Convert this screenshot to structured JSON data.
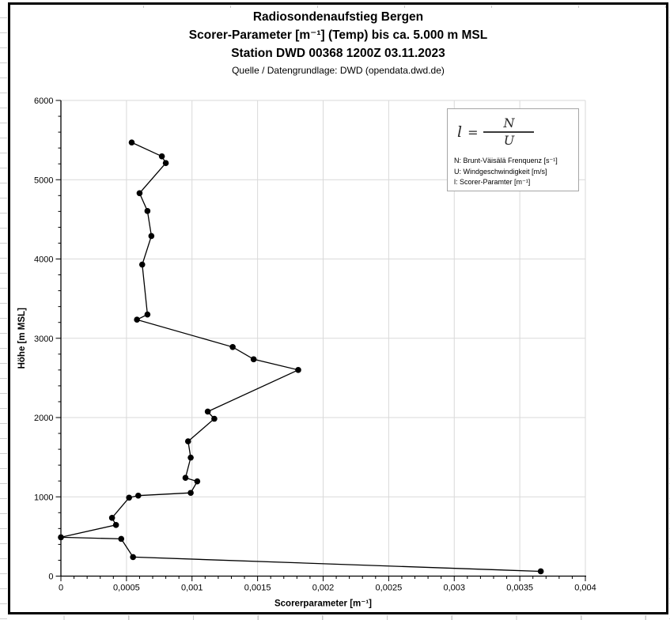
{
  "title": {
    "line1": "Radiosondenaufstieg Bergen",
    "line2": "Scorer-Parameter [m⁻¹] (Temp) bis ca. 5.000 m MSL",
    "line3": "Station DWD 00368 1200Z 03.11.2023",
    "line4": "Quelle / Datengrundlage: DWD (opendata.dwd.de)"
  },
  "legend": {
    "formula_lhs": "l",
    "formula_eq": "=",
    "formula_numerator": "N",
    "formula_denominator": "U",
    "note_n": "N: Brunt-Väisälä Frenquenz [s⁻¹]",
    "note_u": "U: Windgeschwindigkeit [m/s]",
    "note_l": "l: Scorer-Paramter [m⁻¹]"
  },
  "chart_data": {
    "type": "line",
    "title": "Radiosondenaufstieg Bergen — Scorer-Parameter (Temp) bis ca. 5.000 m MSL",
    "xlabel": "Scorerparameter [m⁻¹]",
    "ylabel": "Höhe [m MSL]",
    "xlim": [
      0,
      0.004
    ],
    "ylim": [
      0,
      6000
    ],
    "grid": true,
    "x_ticks": {
      "values": [
        0,
        0.0005,
        0.001,
        0.0015,
        0.002,
        0.0025,
        0.003,
        0.0035,
        0.004
      ],
      "labels": [
        "0",
        "0,0005",
        "0,001",
        "0,0015",
        "0,002",
        "0,0025",
        "0,003",
        "0,0035",
        "0,004"
      ]
    },
    "y_ticks": {
      "values": [
        0,
        1000,
        2000,
        3000,
        4000,
        5000,
        6000
      ],
      "labels": [
        "0",
        "1000",
        "2000",
        "3000",
        "4000",
        "5000",
        "6000"
      ]
    },
    "x_minor_step": 0.0001,
    "y_minor_step": 200,
    "point_format": [
      "scorer_parameter_m-1",
      "hoehe_m_msl"
    ],
    "series": [
      {
        "name": "Scorer-Parameter (Temp)",
        "points": [
          [
            0.00366,
            60
          ],
          [
            0.00055,
            240
          ],
          [
            0.00046,
            470
          ],
          [
            0.0,
            490
          ],
          [
            0.00042,
            645
          ],
          [
            0.00039,
            735
          ],
          [
            0.00052,
            990
          ],
          [
            0.00059,
            1015
          ],
          [
            0.00099,
            1050
          ],
          [
            0.00104,
            1195
          ],
          [
            0.00095,
            1240
          ],
          [
            0.00099,
            1495
          ],
          [
            0.00097,
            1700
          ],
          [
            0.00117,
            1985
          ],
          [
            0.00112,
            2075
          ],
          [
            0.00181,
            2600
          ],
          [
            0.00147,
            2735
          ],
          [
            0.00131,
            2890
          ],
          [
            0.00058,
            3235
          ],
          [
            0.00066,
            3300
          ],
          [
            0.00062,
            3930
          ],
          [
            0.00069,
            4290
          ],
          [
            0.00066,
            4605
          ],
          [
            0.0006,
            4830
          ],
          [
            0.0008,
            5210
          ],
          [
            0.00077,
            5295
          ],
          [
            0.00054,
            5470
          ]
        ]
      }
    ]
  },
  "colors": {
    "grid": "#d9d9d9",
    "axis": "#000000",
    "line": "#000000",
    "marker": "#000000",
    "legend_border": "#a6a6a6"
  }
}
